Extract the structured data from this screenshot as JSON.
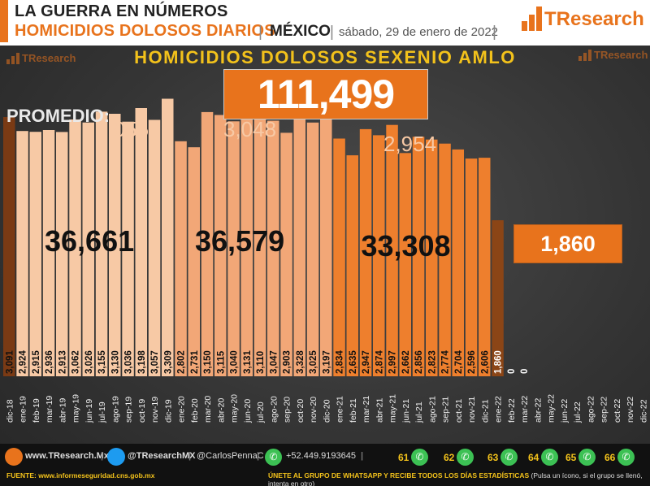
{
  "header": {
    "line1": "LA GUERRA EN NÚMEROS",
    "line2": "HOMICIDIOS DOLOSOS DIARIOS",
    "separator": "|",
    "country": "MÉXICO",
    "date": "sábado, 29 de enero de 2022",
    "logo": "TResearch"
  },
  "watermark": "TResearch",
  "colors": {
    "accent": "#e8731c",
    "yellow": "#f3c21b",
    "period1": "#f7c9a5",
    "period2": "#f2a777",
    "period3": "#ee7f2d",
    "current": "#8b4516",
    "first": "#7a3a14"
  },
  "main_title": "HOMICIDIOS DOLOSOS SEXENIO AMLO",
  "total": "111,499",
  "promedio_label": "PROMEDIO:",
  "peaks": [
    "3,055",
    "3,048",
    "2,954"
  ],
  "sums": [
    "36,661",
    "36,579",
    "33,308"
  ],
  "current_box": "1,860",
  "chart_data": {
    "type": "bar",
    "title": "HOMICIDIOS DOLOSOS SEXENIO AMLO",
    "xlabel": "",
    "ylabel": "",
    "ylim": [
      0,
      3500
    ],
    "categories": [
      "dic-18",
      "ene-19",
      "feb-19",
      "mar-19",
      "abr-19",
      "may-19",
      "jun-19",
      "jul-19",
      "ago-19",
      "sep-19",
      "oct-19",
      "nov-19",
      "dic-19",
      "ene-20",
      "feb-20",
      "mar-20",
      "abr-20",
      "may-20",
      "jun-20",
      "jul-20",
      "ago-20",
      "sep-20",
      "oct-20",
      "nov-20",
      "dic-20",
      "ene-21",
      "feb-21",
      "mar-21",
      "abr-21",
      "may-21",
      "jun-21",
      "jul-21",
      "ago-21",
      "sep-21",
      "oct-21",
      "nov-21",
      "dic-21",
      "ene-22",
      "feb-22",
      "mar-22",
      "abr-22",
      "may-22",
      "jun-22",
      "jul-22",
      "ago-22",
      "sep-22",
      "oct-22",
      "nov-22",
      "dic-22"
    ],
    "values": [
      3091,
      2924,
      2915,
      2936,
      2913,
      3062,
      3026,
      3155,
      3130,
      3036,
      3198,
      3057,
      3309,
      2802,
      2731,
      3150,
      3115,
      3040,
      3131,
      3110,
      3047,
      2903,
      3328,
      3025,
      3197,
      2834,
      2635,
      2947,
      2874,
      2997,
      2662,
      2856,
      2823,
      2774,
      2704,
      2596,
      2606,
      1860,
      0,
      0,
      null,
      null,
      null,
      null,
      null,
      null,
      null,
      null,
      null
    ],
    "value_labels": [
      "3,091",
      "2,924",
      "2,915",
      "2,936",
      "2,913",
      "3,062",
      "3,026",
      "3,155",
      "3,130",
      "3,036",
      "3,198",
      "3,057",
      "3,309",
      "2,802",
      "2,731",
      "3,150",
      "3,115",
      "3,040",
      "3,131",
      "3,110",
      "3,047",
      "2,903",
      "3,328",
      "3,025",
      "3,197",
      "2,834",
      "2,635",
      "2,947",
      "2,874",
      "2,997",
      "2,662",
      "2,856",
      "2,823",
      "2,774",
      "2,704",
      "2,596",
      "2,606",
      "1,860",
      "0",
      "0",
      "",
      "",
      "",
      "",
      "",
      "",
      "",
      "",
      ""
    ],
    "periods": [
      1,
      1,
      1,
      1,
      1,
      1,
      1,
      1,
      1,
      1,
      1,
      1,
      1,
      2,
      2,
      2,
      2,
      2,
      2,
      2,
      2,
      2,
      2,
      2,
      2,
      3,
      3,
      3,
      3,
      3,
      3,
      3,
      3,
      3,
      3,
      3,
      3,
      4,
      4,
      4,
      4,
      4,
      4,
      4,
      4,
      4,
      4,
      4,
      4
    ],
    "grid": false,
    "legend": "none"
  },
  "footer": {
    "site": "www.TResearch.Mx",
    "twitter": "@TResearchMX",
    "twitter2": "@CarlosPennaC",
    "phone": "+52.449.9193645",
    "whatsapp_groups": [
      "61",
      "62",
      "63",
      "64",
      "65",
      "66"
    ],
    "source": "FUENTE: www.informeseguridad.cns.gob.mx",
    "message": "ÚNETE AL GRUPO DE WHATSAPP Y RECIBE TODOS LOS DÍAS ESTADÍSTICAS",
    "message_note": "(Pulsa un ícono, si el grupo se llenó, intenta en otro)",
    "sep": "|"
  }
}
